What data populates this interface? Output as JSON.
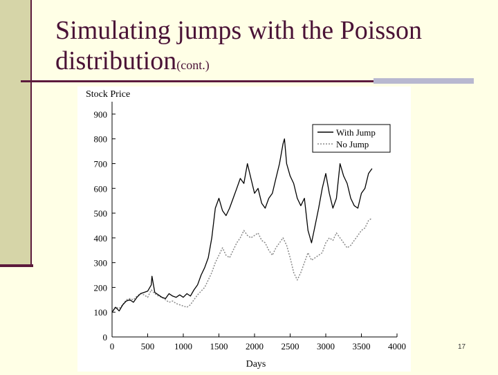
{
  "slide": {
    "title_main": "Simulating jumps with the Poisson",
    "title_line2": "distribution",
    "title_suffix": "(cont.)",
    "page_number": "17"
  },
  "colors": {
    "background": "#ffffe6",
    "title": "#4a1236",
    "accent_bar": "#d6d5a8",
    "rule": "#5c1a3c",
    "with_jump": "#000000",
    "no_jump": "#888888"
  },
  "chart_data": {
    "type": "line",
    "ylabel": "Stock Price",
    "xlabel": "Days",
    "xlim": [
      0,
      4000
    ],
    "ylim": [
      0,
      950
    ],
    "x_ticks": [
      "0",
      "500",
      "1000",
      "1500",
      "2000",
      "2500",
      "3000",
      "3500",
      "4000"
    ],
    "y_ticks": [
      "0",
      "100",
      "200",
      "300",
      "400",
      "500",
      "600",
      "700",
      "800",
      "900"
    ],
    "legend": {
      "position": "top-right",
      "entries": [
        "With Jump",
        "No Jump"
      ]
    },
    "grid": false,
    "series": [
      {
        "name": "With Jump",
        "style": "solid",
        "x": [
          0,
          50,
          100,
          150,
          200,
          250,
          300,
          350,
          400,
          450,
          500,
          550,
          560,
          600,
          650,
          700,
          750,
          800,
          850,
          900,
          950,
          1000,
          1050,
          1100,
          1150,
          1200,
          1250,
          1300,
          1350,
          1400,
          1450,
          1500,
          1550,
          1600,
          1650,
          1700,
          1750,
          1800,
          1850,
          1900,
          1950,
          2000,
          2050,
          2100,
          2150,
          2200,
          2250,
          2300,
          2350,
          2400,
          2420,
          2450,
          2500,
          2550,
          2600,
          2650,
          2700,
          2750,
          2800,
          2850,
          2900,
          2950,
          3000,
          3050,
          3100,
          3150,
          3200,
          3250,
          3300,
          3350,
          3400,
          3450,
          3500,
          3550,
          3600,
          3650
        ],
        "y": [
          100,
          120,
          105,
          130,
          145,
          150,
          140,
          160,
          175,
          180,
          185,
          210,
          245,
          180,
          170,
          160,
          155,
          175,
          165,
          160,
          170,
          160,
          175,
          165,
          190,
          210,
          250,
          280,
          320,
          400,
          520,
          560,
          510,
          490,
          520,
          560,
          600,
          640,
          620,
          700,
          640,
          580,
          600,
          540,
          520,
          560,
          580,
          640,
          700,
          780,
          800,
          700,
          650,
          620,
          560,
          530,
          560,
          430,
          380,
          450,
          520,
          600,
          660,
          580,
          520,
          560,
          700,
          650,
          620,
          560,
          530,
          520,
          580,
          600,
          660,
          680
        ]
      },
      {
        "name": "No Jump",
        "style": "dotted",
        "x": [
          0,
          50,
          100,
          150,
          200,
          250,
          300,
          350,
          400,
          450,
          500,
          550,
          600,
          650,
          700,
          750,
          800,
          850,
          900,
          950,
          1000,
          1050,
          1100,
          1150,
          1200,
          1250,
          1300,
          1350,
          1400,
          1450,
          1500,
          1550,
          1600,
          1650,
          1700,
          1750,
          1800,
          1850,
          1900,
          1950,
          2000,
          2050,
          2100,
          2150,
          2200,
          2250,
          2300,
          2350,
          2400,
          2450,
          2500,
          2550,
          2600,
          2650,
          2700,
          2750,
          2800,
          2850,
          2900,
          2950,
          3000,
          3050,
          3100,
          3150,
          3200,
          3250,
          3300,
          3350,
          3400,
          3450,
          3500,
          3550,
          3600,
          3650
        ],
        "y": [
          110,
          120,
          115,
          130,
          150,
          155,
          150,
          165,
          175,
          170,
          160,
          190,
          175,
          165,
          160,
          150,
          140,
          145,
          135,
          130,
          125,
          120,
          130,
          150,
          170,
          185,
          200,
          230,
          260,
          300,
          330,
          360,
          330,
          320,
          350,
          380,
          400,
          430,
          410,
          400,
          410,
          420,
          390,
          380,
          350,
          330,
          360,
          380,
          400,
          370,
          320,
          260,
          230,
          260,
          300,
          340,
          310,
          320,
          330,
          340,
          380,
          400,
          390,
          420,
          400,
          380,
          360,
          370,
          390,
          410,
          430,
          440,
          470,
          480
        ]
      }
    ]
  }
}
